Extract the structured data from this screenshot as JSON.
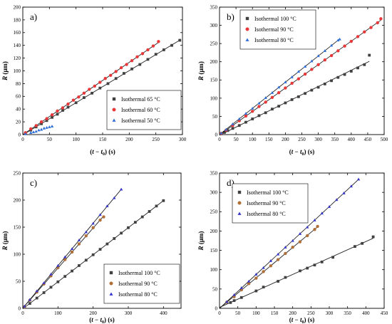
{
  "colors": {
    "black": "#404040",
    "red": "#e8383a",
    "blue": "#2f6fd6",
    "brown": "#b0703a",
    "blue_d": "#3535c9",
    "line": "#222222"
  },
  "chart_data": [
    {
      "type": "scatter",
      "panel_label": "a)",
      "xlabel_parts": {
        "a": "(",
        "b": "t",
        "c": " − ",
        "d": "t",
        "e": "0",
        "f": ") (s)"
      },
      "ylabel_parts": {
        "a": "R",
        "b": " (μm)"
      },
      "xlim": [
        0,
        300
      ],
      "ylim": [
        0,
        200
      ],
      "xticks": [
        "0",
        "50",
        "100",
        "150",
        "200",
        "250",
        "300"
      ],
      "yticks": [
        "0",
        "20",
        "40",
        "60",
        "80",
        "100",
        "120",
        "140",
        "160",
        "180",
        "200"
      ],
      "legend_position": "bottom-right",
      "series": [
        {
          "name": "Isothermal 65 °C",
          "marker": "square",
          "color": "#404040",
          "fit_line": true,
          "x": [
            5,
            15,
            25,
            35,
            45,
            55,
            65,
            75,
            85,
            100,
            115,
            130,
            145,
            160,
            175,
            190,
            205,
            220,
            235,
            250,
            265,
            280,
            295
          ],
          "y": [
            2,
            7,
            12,
            17,
            22,
            27,
            32,
            38,
            43,
            50,
            58,
            65,
            73,
            80,
            88,
            96,
            103,
            110,
            118,
            126,
            133,
            140,
            148
          ]
        },
        {
          "name": "Isothermal 60 °C",
          "marker": "circle",
          "color": "#e8383a",
          "fit_line": true,
          "x": [
            5,
            15,
            25,
            35,
            45,
            55,
            65,
            75,
            85,
            95,
            105,
            115,
            125,
            135,
            145,
            155,
            165,
            175,
            185,
            195,
            205,
            215,
            225,
            235,
            245,
            255
          ],
          "y": [
            3,
            9,
            14,
            20,
            25,
            31,
            37,
            42,
            48,
            54,
            59,
            65,
            71,
            76,
            82,
            88,
            93,
            99,
            105,
            110,
            116,
            122,
            127,
            133,
            139,
            146
          ]
        },
        {
          "name": "Isothermal 50 °C",
          "marker": "triangle",
          "color": "#2f6fd6",
          "fit_line": false,
          "x": [
            5,
            15,
            20,
            25,
            30,
            35,
            40,
            45,
            50,
            55
          ],
          "y": [
            1,
            3,
            4,
            5,
            7,
            8,
            10,
            11,
            12,
            13
          ]
        }
      ]
    },
    {
      "type": "scatter",
      "panel_label": "b)",
      "xlabel_parts": {
        "a": "(",
        "b": "t",
        "c": " − ",
        "d": "t",
        "e": "0",
        "f": ") (s)"
      },
      "ylabel_parts": {
        "a": "R",
        "b": " (μm)"
      },
      "xlim": [
        0,
        500
      ],
      "ylim": [
        0,
        350
      ],
      "xticks": [
        "0",
        "50",
        "100",
        "150",
        "200",
        "250",
        "300",
        "350",
        "400",
        "450",
        "500"
      ],
      "yticks": [
        "0",
        "50",
        "100",
        "150",
        "200",
        "250",
        "300",
        "350"
      ],
      "legend_position": "top-left",
      "series": [
        {
          "name": "Isothermal 100 °C",
          "marker": "square",
          "color": "#404040",
          "fit_line": true,
          "x": [
            5,
            15,
            25,
            40,
            60,
            80,
            100,
            120,
            140,
            160,
            180,
            200,
            220,
            240,
            260,
            280,
            300,
            320,
            340,
            360,
            380,
            400,
            420,
            440,
            455
          ],
          "y": [
            2,
            6,
            11,
            17,
            25,
            34,
            43,
            52,
            60,
            70,
            78,
            87,
            96,
            104,
            113,
            122,
            130,
            139,
            148,
            157,
            165,
            174,
            183,
            192,
            218
          ]
        },
        {
          "name": "Isothermal 90 °C",
          "marker": "circle",
          "color": "#e8383a",
          "fit_line": true,
          "x": [
            5,
            20,
            40,
            60,
            80,
            100,
            120,
            140,
            160,
            180,
            200,
            220,
            240,
            260,
            280,
            300,
            320,
            340,
            360,
            380,
            400,
            420,
            440,
            460,
            480,
            490
          ],
          "y": [
            3,
            12,
            25,
            38,
            51,
            64,
            77,
            89,
            102,
            115,
            128,
            141,
            153,
            166,
            179,
            192,
            205,
            217,
            230,
            243,
            256,
            269,
            282,
            294,
            307,
            318
          ]
        },
        {
          "name": "Isothermal 80 °C",
          "marker": "triangle",
          "color": "#2f6fd6",
          "fit_line": true,
          "x": [
            5,
            20,
            40,
            60,
            80,
            100,
            120,
            140,
            160,
            180,
            200,
            220,
            240,
            260,
            280,
            300,
            320,
            340,
            360,
            365
          ],
          "y": [
            4,
            14,
            29,
            43,
            58,
            72,
            86,
            101,
            115,
            130,
            144,
            158,
            173,
            187,
            202,
            216,
            230,
            245,
            259,
            262
          ]
        }
      ]
    },
    {
      "type": "scatter",
      "panel_label": "c)",
      "xlabel_parts": {
        "a": "(",
        "b": "t",
        "c": " − ",
        "d": "t",
        "e": "0",
        "f": ") (s)"
      },
      "ylabel_parts": {
        "a": "R",
        "b": " (μm)"
      },
      "xlim": [
        0,
        450
      ],
      "ylim": [
        0,
        250
      ],
      "xticks": [
        "0",
        "100",
        "200",
        "300",
        "400"
      ],
      "yticks": [
        "0",
        "50",
        "100",
        "150",
        "200",
        "250"
      ],
      "legend_position": "bottom-right",
      "series": [
        {
          "name": "Isothermal 100 °C",
          "marker": "square",
          "color": "#404040",
          "fit_line": true,
          "x": [
            5,
            20,
            40,
            60,
            80,
            100,
            120,
            140,
            160,
            180,
            200,
            220,
            240,
            260,
            280,
            300,
            320,
            340,
            360,
            380,
            400
          ],
          "y": [
            2,
            9,
            19,
            29,
            39,
            49,
            59,
            69,
            79,
            89,
            99,
            109,
            119,
            129,
            139,
            149,
            159,
            169,
            179,
            189,
            199
          ]
        },
        {
          "name": "Isothermal 90 °C",
          "marker": "circle",
          "color": "#b0703a",
          "fit_line": true,
          "x": [
            5,
            20,
            40,
            60,
            80,
            100,
            120,
            140,
            160,
            180,
            200,
            220,
            230
          ],
          "y": [
            3,
            15,
            30,
            45,
            60,
            75,
            90,
            104,
            119,
            134,
            149,
            163,
            169
          ]
        },
        {
          "name": "Isothermal 80 °C",
          "marker": "triangle",
          "color": "#3535c9",
          "fit_line": true,
          "x": [
            5,
            20,
            40,
            60,
            80,
            100,
            120,
            140,
            160,
            180,
            200,
            220,
            240,
            260,
            280
          ],
          "y": [
            4,
            16,
            32,
            47,
            63,
            79,
            95,
            110,
            126,
            141,
            157,
            173,
            189,
            204,
            220
          ]
        }
      ]
    },
    {
      "type": "scatter",
      "panel_label": "d)",
      "xlabel_parts": {
        "a": "(",
        "b": "t",
        "c": " − ",
        "d": "t",
        "e": "0",
        "f": ") (s)"
      },
      "ylabel_parts": {
        "a": "R",
        "b": " (μm)"
      },
      "xlim": [
        0,
        450
      ],
      "ylim": [
        0,
        350
      ],
      "xticks": [
        "0",
        "50",
        "100",
        "150",
        "200",
        "250",
        "300",
        "350",
        "400",
        "450"
      ],
      "yticks": [
        "0",
        "50",
        "100",
        "150",
        "200",
        "250",
        "300",
        "350"
      ],
      "legend_position": "top-left",
      "series": [
        {
          "name": "Isothermal 100 °C",
          "marker": "square",
          "color": "#404040",
          "fit_line": true,
          "x": [
            30,
            40,
            60,
            100,
            120,
            160,
            180,
            220,
            240,
            260,
            280,
            310,
            370,
            390,
            420
          ],
          "y": [
            15,
            20,
            28,
            45,
            55,
            70,
            80,
            97,
            104,
            112,
            120,
            132,
            160,
            168,
            185
          ]
        },
        {
          "name": "Isothermal 90 °C",
          "marker": "circle",
          "color": "#b0703a",
          "fit_line": true,
          "x": [
            20,
            40,
            60,
            80,
            100,
            120,
            140,
            160,
            180,
            200,
            220,
            240,
            260,
            268
          ],
          "y": [
            16,
            30,
            48,
            64,
            78,
            95,
            110,
            126,
            142,
            158,
            172,
            188,
            204,
            212
          ]
        },
        {
          "name": "Isothermal 80 °C",
          "marker": "triangle",
          "color": "#3535c9",
          "fit_line": true,
          "x": [
            20,
            40,
            60,
            80,
            100,
            120,
            140,
            160,
            180,
            200,
            220,
            240,
            260,
            280,
            300,
            320,
            340,
            360,
            380
          ],
          "y": [
            17,
            35,
            53,
            70,
            88,
            105,
            123,
            140,
            158,
            175,
            193,
            210,
            228,
            246,
            263,
            281,
            298,
            316,
            334
          ]
        }
      ]
    }
  ]
}
